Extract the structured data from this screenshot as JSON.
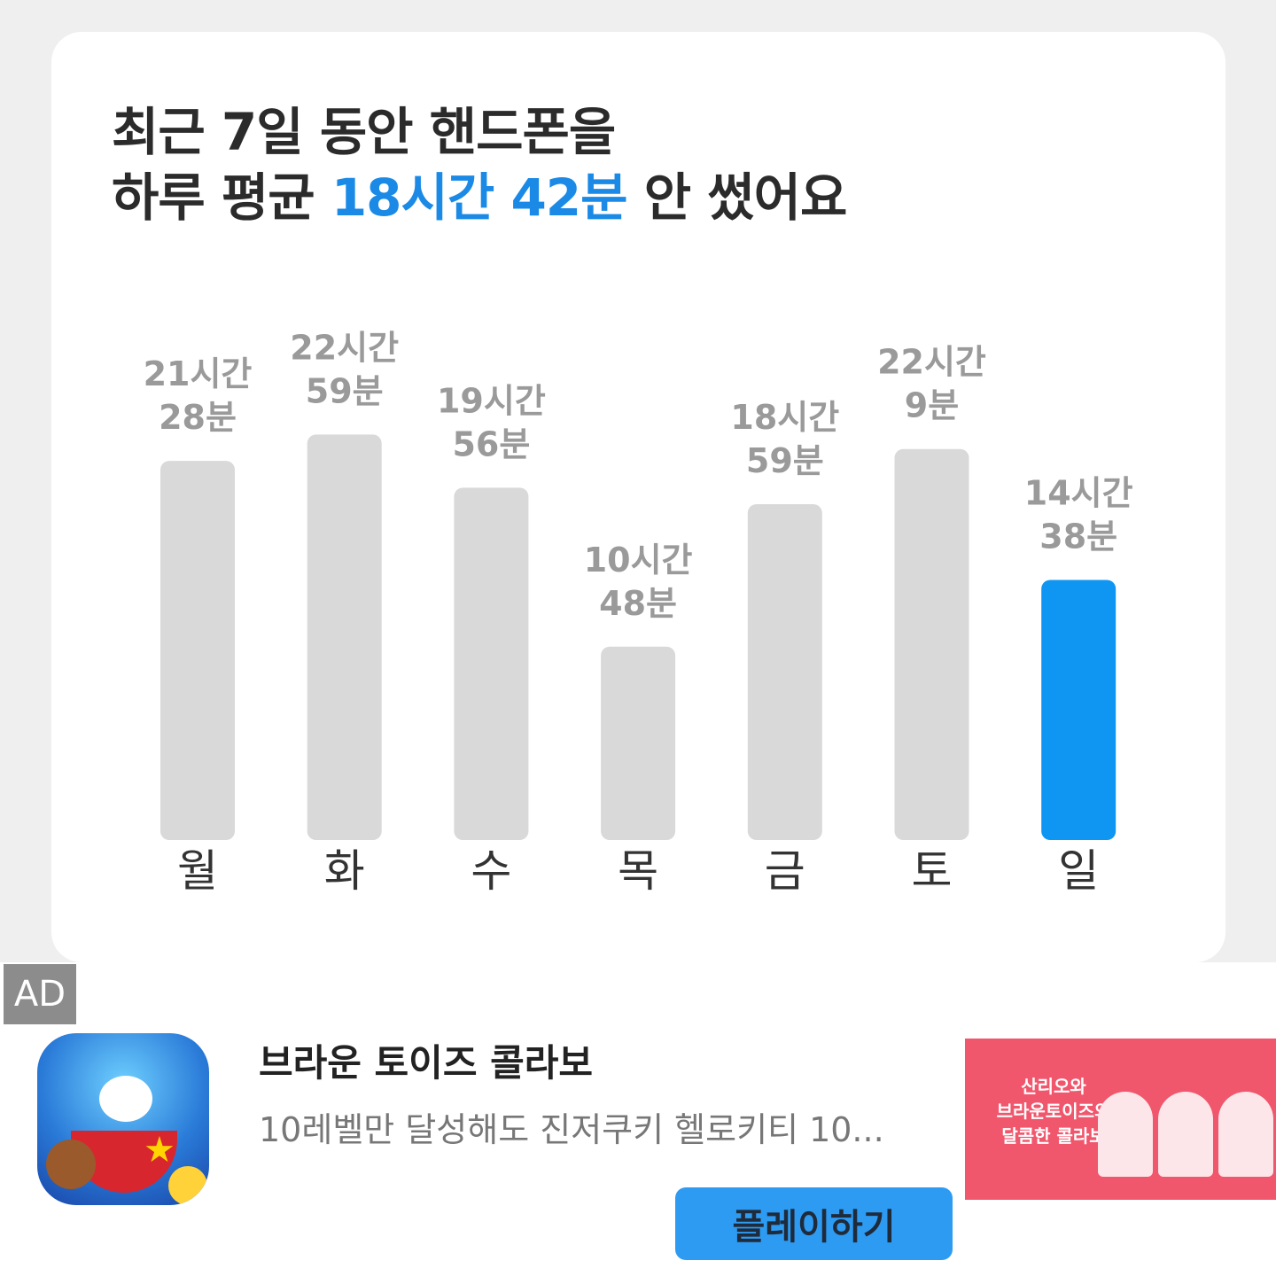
{
  "headline": {
    "line1": "최근 7일 동안 핸드폰을",
    "line2_prefix": "하루 평균 ",
    "line2_highlight": "18시간 42분",
    "line2_suffix": " 안 썼어요"
  },
  "colors": {
    "bar_default": "#d9d9d9",
    "bar_highlight": "#0f95f2",
    "value_label": "#9a9a9a",
    "day_label": "#333333",
    "accent": "#1b8ae6"
  },
  "chart_data": {
    "type": "bar",
    "categories": [
      "월",
      "화",
      "수",
      "목",
      "금",
      "토",
      "일"
    ],
    "values": [
      21.47,
      22.98,
      19.93,
      10.8,
      18.98,
      22.15,
      14.63
    ],
    "value_labels": [
      [
        "21시간",
        "28분"
      ],
      [
        "22시간",
        "59분"
      ],
      [
        "19시간",
        "56분"
      ],
      [
        "10시간",
        "48분"
      ],
      [
        "18시간",
        "59분"
      ],
      [
        "22시간",
        "9분"
      ],
      [
        "14시간",
        "38분"
      ]
    ],
    "highlight_index": 6,
    "unit": "hours",
    "ylim": [
      0,
      24
    ],
    "grid": false,
    "legend": "none"
  },
  "ad": {
    "badge": "AD",
    "title": "브라운 토이즈 콜라보",
    "description": "10레벨만 달성해도 진저쿠키 헬로키티 10...",
    "banner_text": "산리오와\n브라운토이즈의\n달콤한 콜라보",
    "cta": "플레이하기"
  }
}
